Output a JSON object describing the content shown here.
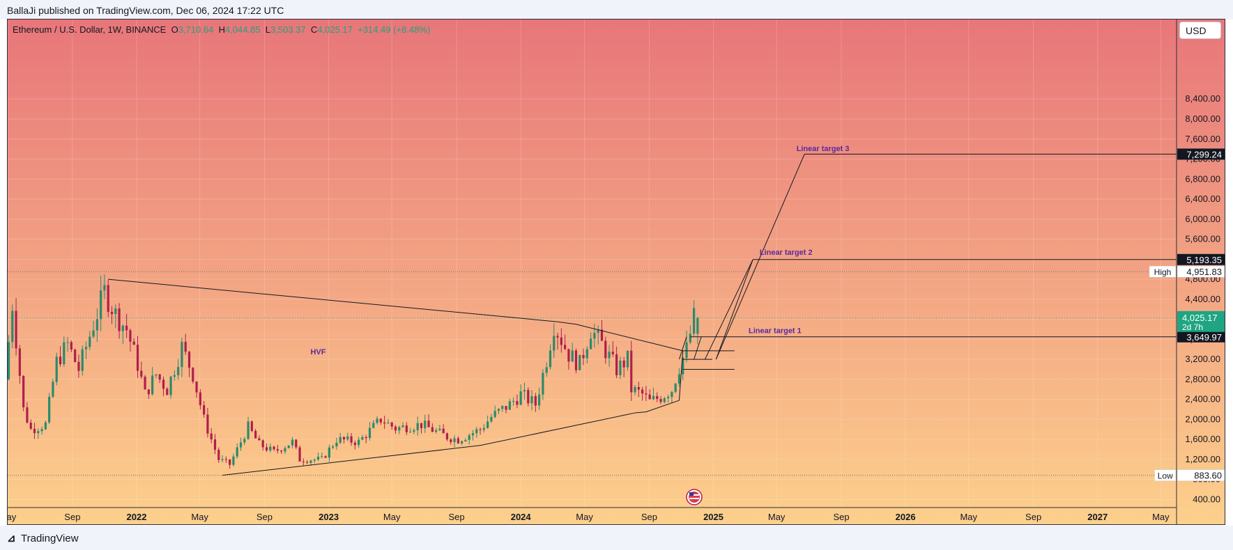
{
  "header": {
    "published_text": "BallaJi published on TradingView.com, Dec 06, 2024 17:22 UTC"
  },
  "footer": {
    "brand": "TradingView"
  },
  "toolbar": {
    "currency": "USD"
  },
  "legend": {
    "symbol": "Ethereum / U.S. Dollar, 1W, BINANCE",
    "open_label": "O",
    "open": "3,710.64",
    "high_label": "H",
    "high": "4,044.85",
    "low_label": "L",
    "low": "3,503.37",
    "close_label": "C",
    "close": "4,025.17",
    "change": "+314.49 (+8.48%)"
  },
  "colors": {
    "bg_top": "#e8767a",
    "bg_bottom": "#fdd08c",
    "up": "#2a8a6c",
    "down": "#b01e4d",
    "annotation": "#5b2a9e",
    "current_price_bg": "#1fa581"
  },
  "chart_data": {
    "type": "candlestick",
    "title": "Ethereum / U.S. Dollar, 1W, BINANCE",
    "y_axis": {
      "ylim": [
        200,
        8600
      ],
      "ticks": [
        400,
        800,
        1200,
        1600,
        2000,
        2400,
        2800,
        3200,
        3600,
        4000,
        4400,
        4800,
        5200,
        5600,
        6000,
        6400,
        6800,
        7200,
        7600,
        8000,
        8400
      ],
      "tick_labels": [
        "400.00",
        "800.00",
        "1,200.00",
        "1,600.00",
        "2,000.00",
        "2,400.00",
        "2,800.00",
        "3,200.00",
        "3,600.00",
        "4,000.00",
        "4,400.00",
        "4,800.00",
        "5,200.00",
        "5,600.00",
        "6,000.00",
        "6,400.00",
        "6,800.00",
        "7,200.00",
        "7,600.00",
        "8,000.00",
        "8,400.00"
      ]
    },
    "x_axis": {
      "start": "2021-05-01",
      "end": "2027-05-31",
      "ticks": [
        {
          "date": "2021-05-01",
          "label": "May",
          "bold": false
        },
        {
          "date": "2021-09-01",
          "label": "Sep",
          "bold": false
        },
        {
          "date": "2022-01-01",
          "label": "2022",
          "bold": true
        },
        {
          "date": "2022-05-01",
          "label": "May",
          "bold": false
        },
        {
          "date": "2022-09-01",
          "label": "Sep",
          "bold": false
        },
        {
          "date": "2023-01-01",
          "label": "2023",
          "bold": true
        },
        {
          "date": "2023-05-01",
          "label": "May",
          "bold": false
        },
        {
          "date": "2023-09-01",
          "label": "Sep",
          "bold": false
        },
        {
          "date": "2024-01-01",
          "label": "2024",
          "bold": true
        },
        {
          "date": "2024-05-01",
          "label": "May",
          "bold": false
        },
        {
          "date": "2024-09-01",
          "label": "Sep",
          "bold": false
        },
        {
          "date": "2025-01-01",
          "label": "2025",
          "bold": true
        },
        {
          "date": "2025-05-01",
          "label": "May",
          "bold": false
        },
        {
          "date": "2025-09-01",
          "label": "Sep",
          "bold": false
        },
        {
          "date": "2026-01-01",
          "label": "2026",
          "bold": true
        },
        {
          "date": "2026-05-01",
          "label": "May",
          "bold": false
        },
        {
          "date": "2026-09-01",
          "label": "Sep",
          "bold": false
        },
        {
          "date": "2027-01-01",
          "label": "2027",
          "bold": true
        },
        {
          "date": "2027-05-01",
          "label": "May",
          "bold": false
        }
      ]
    },
    "anchors": [
      [
        "2021-05-03",
        2800
      ],
      [
        "2021-05-17",
        4300
      ],
      [
        "2021-06-07",
        2200
      ],
      [
        "2021-06-21",
        1800
      ],
      [
        "2021-07-19",
        1900
      ],
      [
        "2021-08-09",
        3150
      ],
      [
        "2021-08-30",
        3500
      ],
      [
        "2021-09-20",
        3000
      ],
      [
        "2021-10-18",
        3900
      ],
      [
        "2021-11-08",
        4550
      ],
      [
        "2021-11-29",
        4100
      ],
      [
        "2021-12-20",
        3800
      ],
      [
        "2022-01-10",
        3100
      ],
      [
        "2022-01-24",
        2500
      ],
      [
        "2022-02-14",
        2900
      ],
      [
        "2022-03-07",
        2600
      ],
      [
        "2022-04-04",
        3450
      ],
      [
        "2022-04-25",
        2900
      ],
      [
        "2022-05-16",
        2000
      ],
      [
        "2022-06-13",
        1200
      ],
      [
        "2022-07-04",
        1100
      ],
      [
        "2022-08-08",
        1850
      ],
      [
        "2022-08-29",
        1500
      ],
      [
        "2022-09-26",
        1350
      ],
      [
        "2022-10-31",
        1550
      ],
      [
        "2022-11-14",
        1200
      ],
      [
        "2022-12-26",
        1200
      ],
      [
        "2023-01-23",
        1600
      ],
      [
        "2023-03-06",
        1550
      ],
      [
        "2023-04-17",
        2000
      ],
      [
        "2023-05-15",
        1820
      ],
      [
        "2023-07-03",
        1900
      ],
      [
        "2023-08-21",
        1650
      ],
      [
        "2023-09-11",
        1600
      ],
      [
        "2023-10-23",
        1800
      ],
      [
        "2023-11-13",
        2050
      ],
      [
        "2023-12-18",
        2300
      ],
      [
        "2024-01-08",
        2500
      ],
      [
        "2024-02-05",
        2300
      ],
      [
        "2024-02-26",
        3200
      ],
      [
        "2024-03-11",
        3900
      ],
      [
        "2024-04-08",
        3300
      ],
      [
        "2024-04-29",
        3100
      ],
      [
        "2024-05-20",
        3800
      ],
      [
        "2024-06-10",
        3500
      ],
      [
        "2024-07-08",
        3000
      ],
      [
        "2024-07-29",
        3200
      ],
      [
        "2024-08-05",
        2600
      ],
      [
        "2024-08-26",
        2500
      ],
      [
        "2024-09-09",
        2350
      ],
      [
        "2024-09-30",
        2450
      ],
      [
        "2024-10-21",
        2600
      ],
      [
        "2024-11-04",
        3050
      ],
      [
        "2024-11-18",
        3400
      ],
      [
        "2024-12-02",
        4025
      ]
    ],
    "last_candle": {
      "date": "2024-12-02",
      "open": 3710.64,
      "high": 4044.85,
      "low": 3503.37,
      "close": 4025.17
    },
    "lines": [
      {
        "from": [
          "2021-11-08",
          4800
        ],
        "to": [
          "2024-03-11",
          3950
        ]
      },
      {
        "from": [
          "2024-03-11",
          3950
        ],
        "to": [
          "2024-04-15",
          3900
        ]
      },
      {
        "from": [
          "2024-04-15",
          3900
        ],
        "to": [
          "2024-11-04",
          3370
        ]
      },
      {
        "from": [
          "2022-06-13",
          883.6
        ],
        "to": [
          "2023-10-16",
          1480
        ]
      },
      {
        "from": [
          "2023-10-16",
          1480
        ],
        "to": [
          "2024-08-05",
          2130
        ]
      },
      {
        "from": [
          "2024-08-05",
          2130
        ],
        "to": [
          "2024-08-26",
          2150
        ]
      },
      {
        "from": [
          "2024-08-26",
          2150
        ],
        "to": [
          "2024-10-28",
          2380
        ]
      },
      {
        "from": [
          "2024-10-28",
          2380
        ],
        "to": [
          "2024-11-04",
          3370
        ]
      },
      {
        "from": [
          "2024-11-04",
          3370
        ],
        "to": [
          "2025-02-10",
          3370
        ]
      },
      {
        "from": [
          "2024-11-04",
          3000
        ],
        "to": [
          "2025-02-10",
          3000
        ]
      },
      {
        "from": [
          "2024-11-04",
          3200
        ],
        "to": [
          "2024-12-30",
          3200
        ]
      },
      {
        "from": [
          "2024-11-18",
          3649.97
        ],
        "to": [
          "2027-05-31",
          3649.97
        ]
      },
      {
        "from": [
          "2024-11-25",
          3200
        ],
        "to": [
          "2024-12-09",
          3649.97
        ]
      },
      {
        "from": [
          "2024-12-16",
          3200
        ],
        "to": [
          "2025-03-17",
          5193.35
        ]
      },
      {
        "from": [
          "2025-01-06",
          3200
        ],
        "to": [
          "2025-03-17",
          5193.35
        ]
      },
      {
        "from": [
          "2025-03-17",
          5193.35
        ],
        "to": [
          "2027-05-31",
          5193.35
        ]
      },
      {
        "from": [
          "2025-01-06",
          3200
        ],
        "to": [
          "2025-06-23",
          7299.24
        ]
      },
      {
        "from": [
          "2025-06-23",
          7299.24
        ],
        "to": [
          "2027-05-31",
          7299.24
        ]
      },
      {
        "from": [
          "2024-10-28",
          3200
        ],
        "to": [
          "2024-11-11",
          3649.97
        ]
      }
    ],
    "annotations": [
      {
        "text": "Linear target 3",
        "date": "2025-07-28",
        "price": 7360
      },
      {
        "text": "Linear target 2",
        "date": "2025-05-19",
        "price": 5290
      },
      {
        "text": "Linear target 1",
        "date": "2025-04-28",
        "price": 3720
      },
      {
        "text": "HVF",
        "date": "2022-12-12",
        "price": 3300
      }
    ],
    "reference_lines": [
      {
        "name": "High",
        "price": 4951.83,
        "label": "4,951.83"
      },
      {
        "name": "Low",
        "price": 883.6,
        "label": "883.60"
      }
    ],
    "price_labels": [
      {
        "price": 7299.24,
        "label": "7,299.24"
      },
      {
        "price": 5193.35,
        "label": "5,193.35"
      },
      {
        "price": 3649.97,
        "label": "3,649.97"
      }
    ],
    "current_price": {
      "price": 4025.17,
      "label": "4,025.17",
      "countdown": "2d 7h"
    }
  }
}
